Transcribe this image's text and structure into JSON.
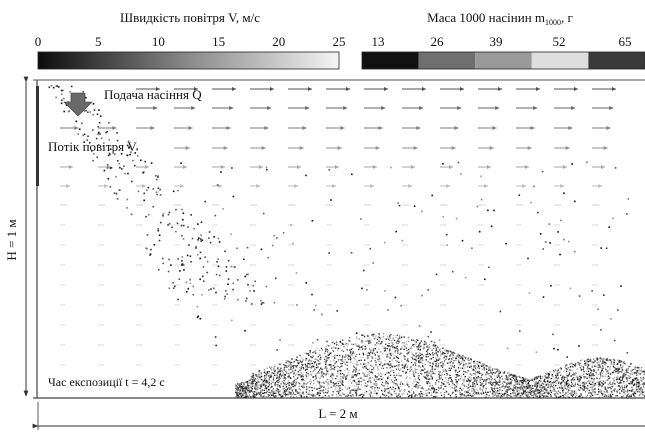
{
  "velocity_scale": {
    "title": "Швидкість повітря V, м/с",
    "ticks": [
      "0",
      "5",
      "10",
      "15",
      "20",
      "25"
    ],
    "range": [
      0,
      25
    ]
  },
  "mass_scale": {
    "title_main": "Маса 1000 насінин m",
    "title_sub": "1000",
    "title_tail": ", г",
    "ticks": [
      "13",
      "26",
      "39",
      "52",
      "65"
    ],
    "colors": [
      "#111111",
      "#6f6f6f",
      "#9a9a9a",
      "#dedede",
      "#3a3a3a"
    ]
  },
  "labels": {
    "seed_feed": "Подача насіння Q",
    "air_flow": "Потік повітря V",
    "exposure": "Час експозиції t = 4,2 с",
    "height": "H = 1 м",
    "length": "L = 2 м"
  }
}
